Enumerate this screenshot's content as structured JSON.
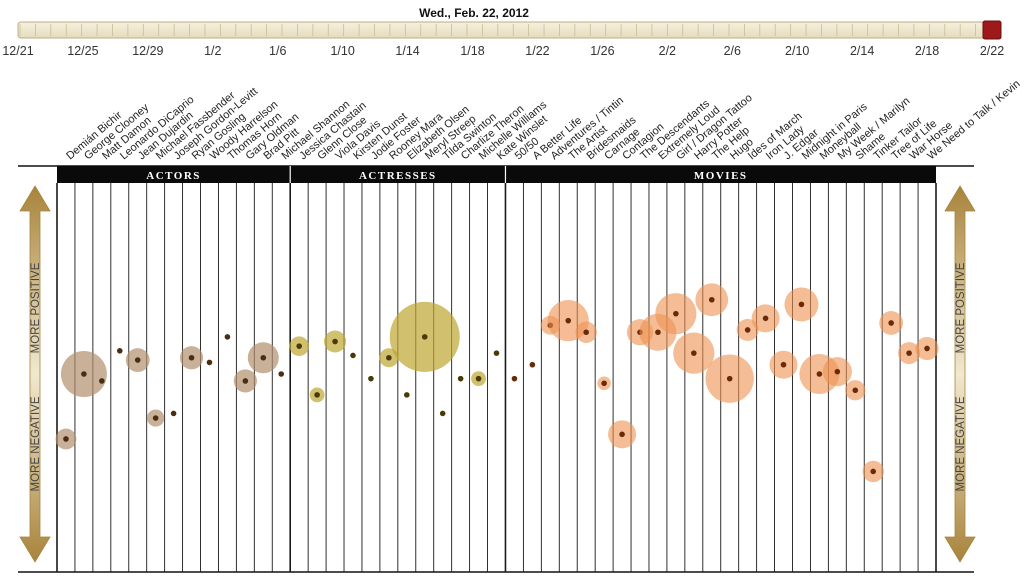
{
  "header": {
    "date_title": "Wed., Feb. 22, 2012"
  },
  "timeline": {
    "tick_labels": [
      "12/21",
      "12/25",
      "12/29",
      "1/2",
      "1/6",
      "1/10",
      "1/14",
      "1/18",
      "1/22",
      "1/26",
      "2/2",
      "2/6",
      "2/10",
      "2/14",
      "2/18",
      "2/22"
    ],
    "current_label": "2/22"
  },
  "side_labels": {
    "positive": "MORE POSITIVE",
    "negative": "MORE NEGATIVE"
  },
  "colors": {
    "actor_fill": "#b08f6d",
    "actor_dot": "#4a2e14",
    "actress_fill": "#bda52f",
    "actress_dot": "#4a3a08",
    "movie_fill": "#ec9150",
    "movie_dot": "#6a2a08",
    "handle": "#9e1a1a",
    "arrow_gold": "#b3924b"
  },
  "chart_data": {
    "type": "scatter",
    "title": "Wed., Feb. 22, 2012",
    "ylabel_top": "MORE POSITIVE",
    "ylabel_bottom": "MORE NEGATIVE",
    "ylim": [
      -1,
      1
    ],
    "size_meaning": "relative volume of mentions",
    "sections": [
      {
        "name": "ACTORS",
        "columns": 13
      },
      {
        "name": "ACTRESSES",
        "columns": 12
      },
      {
        "name": "MOVIES",
        "columns": 24
      }
    ],
    "series": [
      {
        "name": "Actors",
        "points": [
          {
            "label": "Demián Bichir",
            "sentiment": -0.28,
            "size": 0.18
          },
          {
            "label": "George Clooney",
            "sentiment": 0.0,
            "size": 0.6
          },
          {
            "label": "Matt Damon",
            "sentiment": -0.03,
            "size": 0.0
          },
          {
            "label": "Leonardo DiCaprio",
            "sentiment": 0.1,
            "size": 0.0
          },
          {
            "label": "Jean Dujardin",
            "sentiment": 0.06,
            "size": 0.23
          },
          {
            "label": "Michael Fassbender",
            "sentiment": -0.19,
            "size": 0.12
          },
          {
            "label": "Joseph Gordon-Levitt",
            "sentiment": -0.17,
            "size": 0.0
          },
          {
            "label": "Ryan Gosling",
            "sentiment": 0.07,
            "size": 0.22
          },
          {
            "label": "Woody Harrelson",
            "sentiment": 0.05,
            "size": 0.0
          },
          {
            "label": "Thomas Horn",
            "sentiment": 0.16,
            "size": 0.0
          },
          {
            "label": "Gary Oldman",
            "sentiment": -0.03,
            "size": 0.22
          },
          {
            "label": "Brad Pitt",
            "sentiment": 0.07,
            "size": 0.35
          },
          {
            "label": "Michael Shannon",
            "sentiment": 0.0,
            "size": 0.0
          }
        ]
      },
      {
        "name": "Actresses",
        "points": [
          {
            "label": "Jessica Chastain",
            "sentiment": 0.12,
            "size": 0.16
          },
          {
            "label": "Glenn Close",
            "sentiment": -0.09,
            "size": 0.08
          },
          {
            "label": "Viola Davis",
            "sentiment": 0.14,
            "size": 0.2
          },
          {
            "label": "Kirsten Dunst",
            "sentiment": 0.08,
            "size": 0.0
          },
          {
            "label": "Jodie Foster",
            "sentiment": -0.02,
            "size": 0.0
          },
          {
            "label": "Rooney Mara",
            "sentiment": 0.07,
            "size": 0.15
          },
          {
            "label": "Elizabeth Olsen",
            "sentiment": -0.09,
            "size": 0.0
          },
          {
            "label": "Meryl Streep",
            "sentiment": 0.16,
            "size": 1.0
          },
          {
            "label": "Tilda Swinton",
            "sentiment": -0.17,
            "size": 0.0
          },
          {
            "label": "Charlize Theron",
            "sentiment": -0.02,
            "size": 0.0
          },
          {
            "label": "Michelle Williams",
            "sentiment": -0.02,
            "size": 0.08
          },
          {
            "label": "Kate Winslet",
            "sentiment": 0.09,
            "size": 0.0
          }
        ]
      },
      {
        "name": "Movies",
        "points": [
          {
            "label": "50/50",
            "sentiment": -0.02,
            "size": 0.0
          },
          {
            "label": "A Better Life",
            "sentiment": 0.04,
            "size": 0.0
          },
          {
            "label": "Adventures / Tintin",
            "sentiment": 0.21,
            "size": 0.15
          },
          {
            "label": "The Artist",
            "sentiment": 0.23,
            "size": 0.52
          },
          {
            "label": "Bridesmaids",
            "sentiment": 0.18,
            "size": 0.19
          },
          {
            "label": "Carnage",
            "sentiment": -0.04,
            "size": 0.06
          },
          {
            "label": "Contagion",
            "sentiment": -0.26,
            "size": 0.3
          },
          {
            "label": "The Descendants",
            "sentiment": 0.18,
            "size": 0.27
          },
          {
            "label": "Extremely Loud",
            "sentiment": 0.18,
            "size": 0.45
          },
          {
            "label": "Girl / Dragon Tattoo",
            "sentiment": 0.26,
            "size": 0.52
          },
          {
            "label": "Harry Potter",
            "sentiment": 0.09,
            "size": 0.52
          },
          {
            "label": "The Help",
            "sentiment": 0.32,
            "size": 0.38
          },
          {
            "label": "Hugo",
            "sentiment": -0.02,
            "size": 0.64
          },
          {
            "label": "Ides of March",
            "sentiment": 0.19,
            "size": 0.2
          },
          {
            "label": "Iron Lady",
            "sentiment": 0.24,
            "size": 0.3
          },
          {
            "label": "J. Edgar",
            "sentiment": 0.04,
            "size": 0.3
          },
          {
            "label": "Midnight in Paris",
            "sentiment": 0.3,
            "size": 0.4
          },
          {
            "label": "Moneyball",
            "sentiment": 0.0,
            "size": 0.5
          },
          {
            "label": "My Week / Marilyn",
            "sentiment": 0.01,
            "size": 0.32
          },
          {
            "label": "Shame",
            "sentiment": -0.07,
            "size": 0.17
          },
          {
            "label": "Tinker Tailor",
            "sentiment": -0.42,
            "size": 0.19
          },
          {
            "label": "Tree of Life",
            "sentiment": 0.22,
            "size": 0.23
          },
          {
            "label": "War Horse",
            "sentiment": 0.09,
            "size": 0.2
          },
          {
            "label": "We Need to Talk / Kevin",
            "sentiment": 0.11,
            "size": 0.22
          }
        ]
      }
    ]
  }
}
